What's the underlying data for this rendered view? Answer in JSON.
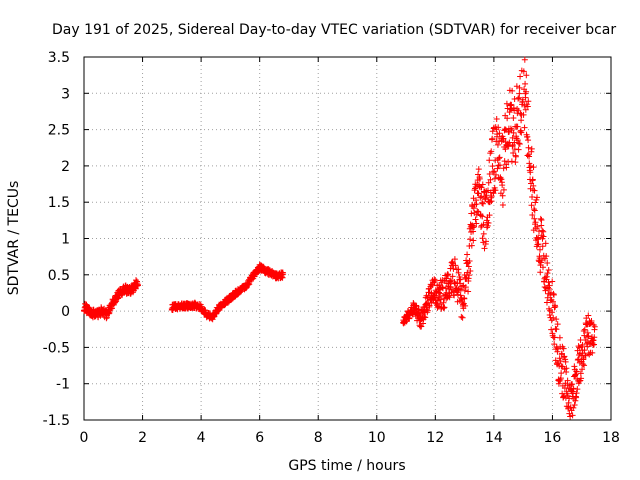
{
  "chart_data": {
    "type": "scatter",
    "title": "Day 191 of 2025, Sidereal Day-to-day VTEC variation (SDTVAR) for receiver bcar",
    "xlabel": "GPS time / hours",
    "ylabel": "SDTVAR / TECUs",
    "xlim": [
      0,
      18
    ],
    "ylim": [
      -1.5,
      3.5
    ],
    "xticks": [
      "0",
      "2",
      "4",
      "6",
      "8",
      "10",
      "12",
      "14",
      "16",
      "18"
    ],
    "yticks": [
      "-1.5",
      "-1",
      "-0.5",
      "0",
      "0.5",
      "1",
      "1.5",
      "2",
      "2.5",
      "3",
      "3.5"
    ],
    "grid": true,
    "marker": "+",
    "color": "#ff0000",
    "series": [
      {
        "name": "SDTVAR",
        "anchors": [
          [
            0.0,
            0.05
          ],
          [
            0.2,
            0.0
          ],
          [
            0.4,
            -0.05
          ],
          [
            0.6,
            0.0
          ],
          [
            0.8,
            -0.05
          ],
          [
            0.9,
            0.05
          ],
          [
            1.0,
            0.12
          ],
          [
            1.2,
            0.25
          ],
          [
            1.4,
            0.3
          ],
          [
            1.6,
            0.28
          ],
          [
            1.8,
            0.38
          ],
          [
            3.0,
            0.05
          ],
          [
            3.4,
            0.07
          ],
          [
            3.8,
            0.08
          ],
          [
            4.0,
            0.05
          ],
          [
            4.2,
            -0.05
          ],
          [
            4.4,
            -0.08
          ],
          [
            4.6,
            0.05
          ],
          [
            4.8,
            0.12
          ],
          [
            5.0,
            0.18
          ],
          [
            5.2,
            0.25
          ],
          [
            5.4,
            0.3
          ],
          [
            5.6,
            0.38
          ],
          [
            5.8,
            0.5
          ],
          [
            6.0,
            0.6
          ],
          [
            6.2,
            0.56
          ],
          [
            6.4,
            0.52
          ],
          [
            6.6,
            0.48
          ],
          [
            6.8,
            0.5
          ],
          [
            10.9,
            -0.15
          ],
          [
            11.1,
            -0.05
          ],
          [
            11.3,
            0.05
          ],
          [
            11.5,
            -0.15
          ],
          [
            11.7,
            0.1
          ],
          [
            11.9,
            0.3
          ],
          [
            12.1,
            0.2
          ],
          [
            12.3,
            0.25
          ],
          [
            12.5,
            0.4
          ],
          [
            12.7,
            0.5
          ],
          [
            12.9,
            0.1
          ],
          [
            13.1,
            0.5
          ],
          [
            13.3,
            1.3
          ],
          [
            13.5,
            1.7
          ],
          [
            13.7,
            1.2
          ],
          [
            13.9,
            1.9
          ],
          [
            14.1,
            2.2
          ],
          [
            14.3,
            1.9
          ],
          [
            14.5,
            2.6
          ],
          [
            14.7,
            2.5
          ],
          [
            14.9,
            2.8
          ],
          [
            15.0,
            3.2
          ],
          [
            15.2,
            2.4
          ],
          [
            15.4,
            1.3
          ],
          [
            15.6,
            0.9
          ],
          [
            15.8,
            0.5
          ],
          [
            16.0,
            0.0
          ],
          [
            16.2,
            -0.6
          ],
          [
            16.4,
            -0.9
          ],
          [
            16.6,
            -1.3
          ],
          [
            16.8,
            -0.9
          ],
          [
            17.0,
            -0.6
          ],
          [
            17.2,
            -0.3
          ],
          [
            17.4,
            -0.4
          ]
        ],
        "spread": [
          [
            0.0,
            0.06
          ],
          [
            2.0,
            0.06
          ],
          [
            3.0,
            0.04
          ],
          [
            7.0,
            0.04
          ],
          [
            10.9,
            0.05
          ],
          [
            12.0,
            0.18
          ],
          [
            13.0,
            0.3
          ],
          [
            14.0,
            0.5
          ],
          [
            15.0,
            0.5
          ],
          [
            16.0,
            0.4
          ],
          [
            17.5,
            0.25
          ]
        ],
        "segments": [
          [
            0.0,
            1.85
          ],
          [
            3.0,
            6.8
          ],
          [
            10.9,
            17.45
          ]
        ]
      }
    ]
  }
}
